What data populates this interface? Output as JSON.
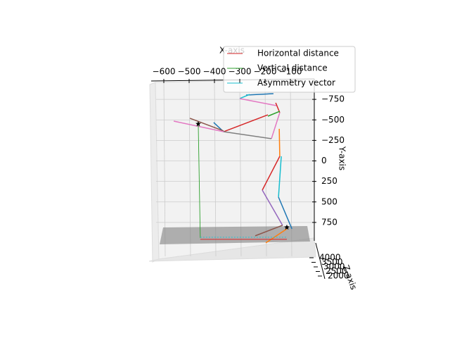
{
  "chart_data": {
    "type": "line3d",
    "xlabel": "X-axis",
    "ylabel": "Y-axis",
    "zlabel": "Z-axis",
    "xlim": [
      -650,
      0
    ],
    "ylim": [
      -1000,
      1000
    ],
    "zlim": [
      2000,
      4000
    ],
    "xticks": [
      {
        "value": -600,
        "label": "−600"
      },
      {
        "value": -500,
        "label": "−500"
      },
      {
        "value": -400,
        "label": "−400"
      },
      {
        "value": -300,
        "label": "−300"
      },
      {
        "value": -200,
        "label": "−200"
      },
      {
        "value": -100,
        "label": "−100"
      }
    ],
    "yticks": [
      {
        "value": -750,
        "label": "−750"
      },
      {
        "value": -500,
        "label": "−500"
      },
      {
        "value": -250,
        "label": "−250"
      },
      0,
      250,
      500,
      750
    ],
    "zticks": [
      4000,
      3500,
      3000,
      2500,
      2000
    ],
    "grid": true,
    "legend": "upper right",
    "series": [
      {
        "name": "Horizontal distance",
        "color": "#d62728",
        "x": [
          -456,
          -114
        ],
        "y": [
          956,
          956
        ]
      },
      {
        "name": "Vertical distance",
        "color": "#2ca02c",
        "x": [
          -464,
          -456
        ],
        "y": [
          -451,
          939
        ]
      },
      {
        "name": "Asymmetry vector",
        "color": "#17becf",
        "x": [
          -456,
          -114
        ],
        "y": [
          931,
          931
        ]
      }
    ],
    "segments": [
      {
        "color": "#1f77b4",
        "x": [
          -275,
          -167
        ],
        "y": [
          -803,
          -820
        ]
      },
      {
        "color": "#17becf",
        "x": [
          -300,
          -261
        ],
        "y": [
          -760,
          -811
        ]
      },
      {
        "color": "#e377c2",
        "x": [
          -300,
          -156
        ],
        "y": [
          -760,
          -674
        ]
      },
      {
        "color": "#d62728",
        "x": [
          -158,
          -142
        ],
        "y": [
          -708,
          -588
        ]
      },
      {
        "color": "#2ca02c",
        "x": [
          -189,
          -142
        ],
        "y": [
          -545,
          -605
        ]
      },
      {
        "color": "#d62728",
        "x": [
          -364,
          -189
        ],
        "y": [
          -356,
          -562
        ]
      },
      {
        "color": "#e377c2",
        "x": [
          -142,
          -175
        ],
        "y": [
          -588,
          -271
        ]
      },
      {
        "color": "#7f7f7f",
        "x": [
          -364,
          -175
        ],
        "y": [
          -356,
          -271
        ]
      },
      {
        "color": "#1f77b4",
        "x": [
          -403,
          -364
        ],
        "y": [
          -468,
          -356
        ]
      },
      {
        "color": "#8c564b",
        "x": [
          -497,
          -364
        ],
        "y": [
          -520,
          -365
        ]
      },
      {
        "color": "#e377c2",
        "x": [
          -561,
          -364
        ],
        "y": [
          -485,
          -356
        ]
      },
      {
        "color": "#ff7f0e",
        "x": [
          -144,
          -142
        ],
        "y": [
          -391,
          -56
        ]
      },
      {
        "color": "#17becf",
        "x": [
          -136,
          -147
        ],
        "y": [
          -56,
          441
        ]
      },
      {
        "color": "#d62728",
        "x": [
          -142,
          -211
        ],
        "y": [
          -56,
          356
        ]
      },
      {
        "color": "#9467bd",
        "x": [
          -211,
          -131
        ],
        "y": [
          356,
          785
        ]
      },
      {
        "color": "#1f77b4",
        "x": [
          -147,
          -94
        ],
        "y": [
          441,
          828
        ]
      },
      {
        "color": "#8c564b",
        "x": [
          -131,
          -239
        ],
        "y": [
          785,
          913
        ]
      },
      {
        "color": "#ff7f0e",
        "x": [
          -114,
          -197
        ],
        "y": [
          828,
          999
        ]
      }
    ],
    "points": {
      "color": "#000000",
      "x": [
        -464,
        -114
      ],
      "y": [
        -451,
        810
      ]
    }
  }
}
